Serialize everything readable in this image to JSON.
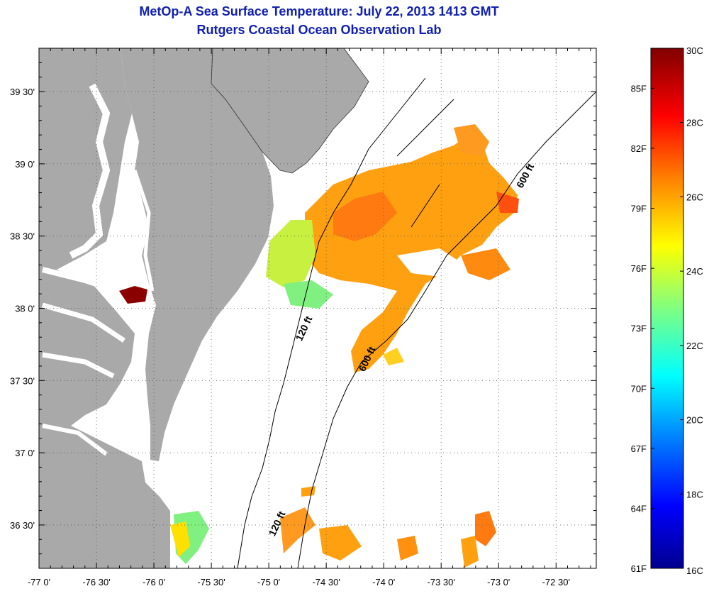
{
  "title": "MetOp-A Sea Surface Temperature:  July 22, 2013 1413 GMT",
  "subtitle": "Rutgers Coastal Ocean Observation Lab",
  "map": {
    "lon_range": [
      -77.0,
      -72.15
    ],
    "lat_range": [
      36.2,
      39.8
    ],
    "lon_ticks": [
      "-77 0'",
      "-76 30'",
      "-76 0'",
      "-75 30'",
      "-75 0'",
      "-74 30'",
      "-74 0'",
      "-73 30'",
      "-73 0'",
      "-72 30'"
    ],
    "lat_ticks": [
      "39 30'",
      "39 0'",
      "38 30'",
      "38 0'",
      "37 30'",
      "37 0'",
      "36 30'"
    ],
    "isobath_labels": {
      "upper_600": "600 ft",
      "mid_600": "600 ft",
      "mid_120": "120 ft",
      "lower_120": "120 ft"
    },
    "colors": {
      "land": "#a9a9a9",
      "water": "#ffffff",
      "grid": "#555555"
    }
  },
  "colorbar": {
    "f_labels": [
      "85F",
      "82F",
      "79F",
      "76F",
      "73F",
      "70F",
      "67F",
      "64F",
      "61F"
    ],
    "c_labels": [
      "30C",
      "28C",
      "26C",
      "24C",
      "22C",
      "20C",
      "18C",
      "16C"
    ],
    "f_range": [
      61,
      87
    ],
    "c_range": [
      16,
      30
    ]
  }
}
